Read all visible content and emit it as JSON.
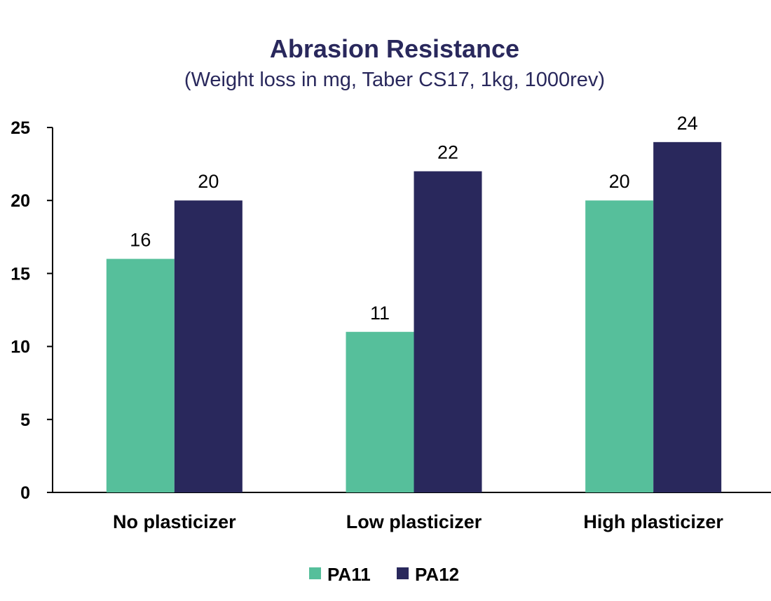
{
  "chart_data": {
    "type": "bar",
    "title": "Abrasion Resistance",
    "subtitle": "(Weight loss in mg, Taber CS17, 1kg, 1000rev)",
    "categories": [
      "No plasticizer",
      "Low plasticizer",
      "High plasticizer"
    ],
    "series": [
      {
        "name": "PA11",
        "values": [
          16,
          11,
          20
        ],
        "color": "#56BF9B"
      },
      {
        "name": "PA12",
        "values": [
          20,
          22,
          24
        ],
        "color": "#29285C"
      }
    ],
    "ylim": [
      0,
      25
    ],
    "yticks": [
      0,
      5,
      10,
      15,
      20,
      25
    ],
    "grid": false,
    "legend_position": "bottom",
    "data_labels": true
  },
  "colors": {
    "title": "#29285C",
    "axis": "#000000"
  }
}
